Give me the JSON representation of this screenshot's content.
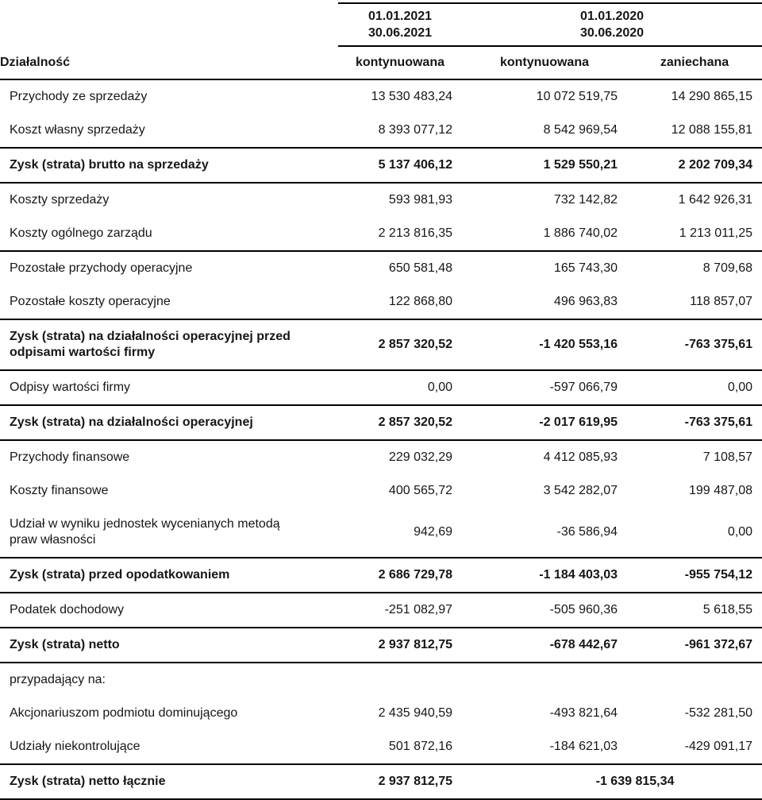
{
  "report": {
    "periods": [
      {
        "label": "01.01.2021\n30.06.2021"
      },
      {
        "label": "01.01.2020\n30.06.2020"
      }
    ],
    "columns": {
      "activity": "Działalność",
      "c2021_continued": "kontynuowana",
      "c2020_continued": "kontynuowana",
      "c2020_discontinued": "zaniechana"
    },
    "rows": [
      {
        "label": "Przychody ze sprzedaży",
        "values": [
          "13 530 483,24",
          "10 072 519,75",
          "14 290 865,15"
        ],
        "bold": false,
        "sep": false,
        "span": false
      },
      {
        "label": "Koszt własny sprzedaży",
        "values": [
          "8 393 077,12",
          "8 542 969,54",
          "12 088 155,81"
        ],
        "bold": false,
        "sep": false,
        "span": false
      },
      {
        "label": "Zysk (strata) brutto na sprzedaży",
        "values": [
          "5 137 406,12",
          "1 529 550,21",
          "2 202 709,34"
        ],
        "bold": true,
        "sep": true,
        "span": false
      },
      {
        "label": "Koszty sprzedaży",
        "values": [
          "593 981,93",
          "732 142,82",
          "1 642 926,31"
        ],
        "bold": false,
        "sep": true,
        "span": false
      },
      {
        "label": "Koszty ogólnego zarządu",
        "values": [
          "2 213 816,35",
          "1 886 740,02",
          "1 213 011,25"
        ],
        "bold": false,
        "sep": false,
        "span": false
      },
      {
        "label": "Pozostałe przychody operacyjne",
        "values": [
          "650 581,48",
          "165 743,30",
          "8 709,68"
        ],
        "bold": false,
        "sep": true,
        "span": false
      },
      {
        "label": "Pozostałe koszty operacyjne",
        "values": [
          "122 868,80",
          "496 963,83",
          "118 857,07"
        ],
        "bold": false,
        "sep": false,
        "span": false
      },
      {
        "label": "Zysk (strata) na działalności operacyjnej przed\nodpisami wartości firmy",
        "values": [
          "2 857 320,52",
          "-1 420 553,16",
          "-763 375,61"
        ],
        "bold": true,
        "sep": true,
        "span": false
      },
      {
        "label": "Odpisy wartości firmy",
        "values": [
          "0,00",
          "-597 066,79",
          "0,00"
        ],
        "bold": false,
        "sep": true,
        "span": false
      },
      {
        "label": "Zysk (strata) na działalności operacyjnej",
        "values": [
          "2 857 320,52",
          "-2 017 619,95",
          "-763 375,61"
        ],
        "bold": true,
        "sep": true,
        "span": false
      },
      {
        "label": "Przychody finansowe",
        "values": [
          "229 032,29",
          "4 412 085,93",
          "7 108,57"
        ],
        "bold": false,
        "sep": true,
        "span": false
      },
      {
        "label": "Koszty finansowe",
        "values": [
          "400 565,72",
          "3 542 282,07",
          "199 487,08"
        ],
        "bold": false,
        "sep": false,
        "span": false
      },
      {
        "label": "Udział w wyniku jednostek wycenianych metodą\npraw własności",
        "values": [
          "942,69",
          "-36 586,94",
          "0,00"
        ],
        "bold": false,
        "sep": false,
        "span": false
      },
      {
        "label": "Zysk (strata) przed opodatkowaniem",
        "values": [
          "2 686 729,78",
          "-1 184 403,03",
          "-955 754,12"
        ],
        "bold": true,
        "sep": true,
        "span": false
      },
      {
        "label": "Podatek dochodowy",
        "values": [
          "-251 082,97",
          "-505 960,36",
          "5 618,55"
        ],
        "bold": false,
        "sep": true,
        "span": false
      },
      {
        "label": "Zysk (strata) netto",
        "values": [
          "2 937 812,75",
          "-678 442,67",
          "-961 372,67"
        ],
        "bold": true,
        "sep": true,
        "span": false
      },
      {
        "label": "przypadający na:",
        "values": [
          "",
          "",
          ""
        ],
        "bold": false,
        "sep": true,
        "span": false
      },
      {
        "label": "Akcjonariuszom podmiotu dominującego",
        "values": [
          "2 435 940,59",
          "-493 821,64",
          "-532 281,50"
        ],
        "bold": false,
        "sep": false,
        "span": false
      },
      {
        "label": "Udziały niekontrolujące",
        "values": [
          "501 872,16",
          "-184 621,03",
          "-429 091,17"
        ],
        "bold": false,
        "sep": false,
        "span": false
      },
      {
        "label": "Zysk (strata) netto łącznie",
        "values": [
          "2 937 812,75",
          "-1 639 815,34"
        ],
        "bold": true,
        "sep": true,
        "span": true
      }
    ]
  },
  "colors": {
    "text": "#161616",
    "line": "#000000",
    "background": "#ffffff"
  }
}
